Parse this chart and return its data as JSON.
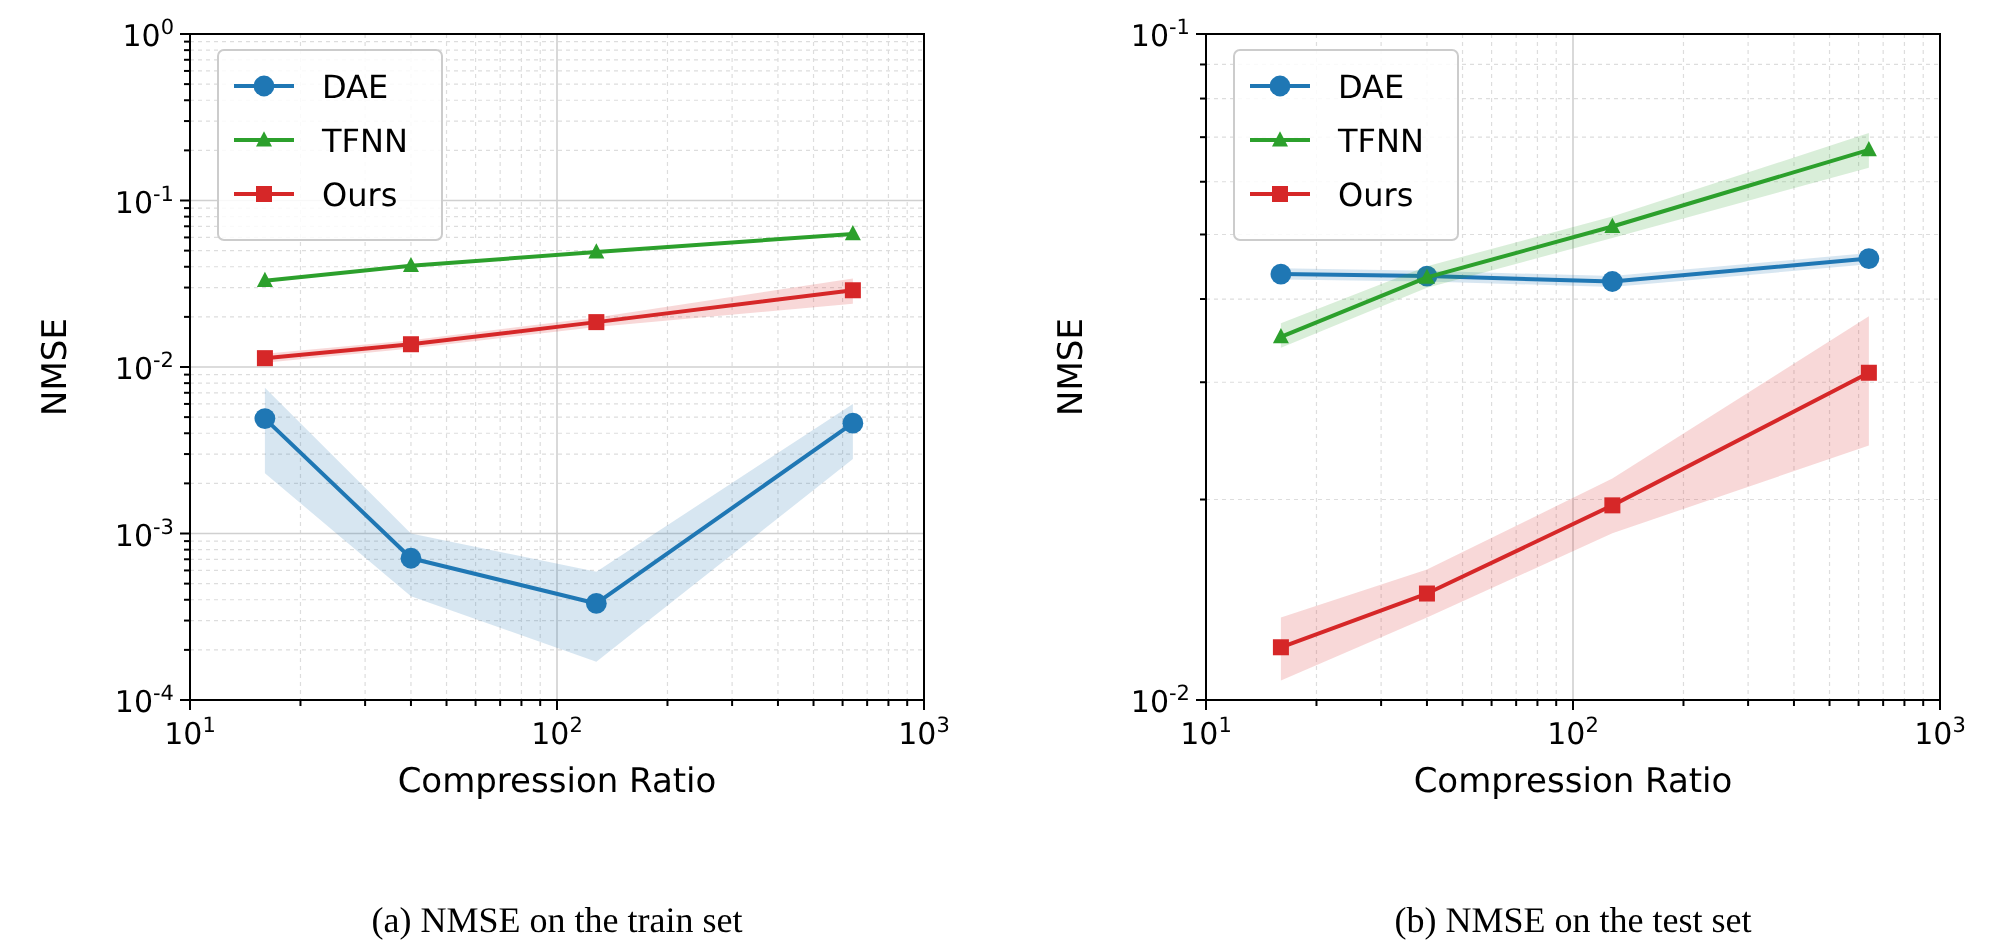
{
  "chart_data": [
    {
      "type": "line",
      "xlabel": "Compression Ratio",
      "ylabel": "NMSE",
      "log": "xy",
      "grid": true,
      "legend": "top left",
      "annotations": [
        "(a) NMSE on the train set"
      ],
      "xlim": [
        10,
        1000
      ],
      "xticks": [
        {
          "value": 10,
          "label": "10$^{1}$"
        },
        {
          "value": 100,
          "label": "10$^{2}$"
        },
        {
          "value": 1000,
          "label": "10$^{3}$"
        }
      ],
      "ylim": [
        0.0001,
        1
      ],
      "yticks": [
        {
          "value": 0.0001,
          "label": "10$^{-4}$"
        },
        {
          "value": 0.001,
          "label": "10$^{-3}$"
        },
        {
          "value": 0.01,
          "label": "10$^{-2}$"
        },
        {
          "value": 0.1,
          "label": "10$^{-1}$"
        },
        {
          "value": 1,
          "label": "10$^{0}$"
        }
      ],
      "x": [
        16,
        40,
        128,
        640
      ],
      "series": [
        {
          "name": "DAE",
          "color": "#1f77b4",
          "marker": "circle",
          "values": [
            0.0049,
            0.00071,
            0.00038,
            0.0046
          ],
          "lower": [
            0.0023,
            0.00042,
            0.00017,
            0.0028
          ],
          "upper": [
            0.0075,
            0.001,
            0.00059,
            0.006
          ]
        },
        {
          "name": "TFNN",
          "color": "#2ca02c",
          "marker": "triangle",
          "values": [
            0.033,
            0.0406,
            0.049,
            0.063
          ]
        },
        {
          "name": "Ours",
          "color": "#d62728",
          "marker": "square",
          "values": [
            0.0113,
            0.0137,
            0.0186,
            0.0289
          ],
          "lower": [
            0.0106,
            0.0129,
            0.0174,
            0.024
          ],
          "upper": [
            0.012,
            0.0145,
            0.0198,
            0.034
          ]
        }
      ]
    },
    {
      "type": "line",
      "xlabel": "Compression Ratio",
      "ylabel": "NMSE",
      "log": "xy",
      "grid": true,
      "legend": "top left",
      "annotations": [
        "(b) NMSE on the test set"
      ],
      "xlim": [
        10,
        1000
      ],
      "xticks": [
        {
          "value": 10,
          "label": "10$^{1}$"
        },
        {
          "value": 100,
          "label": "10$^{2}$"
        },
        {
          "value": 1000,
          "label": "10$^{3}$"
        }
      ],
      "ylim": [
        0.01,
        0.1
      ],
      "yticks": [
        {
          "value": 0.01,
          "label": "10$^{-2}$"
        },
        {
          "value": 0.1,
          "label": "10$^{-1}$"
        }
      ],
      "x": [
        16,
        40,
        128,
        640
      ],
      "series": [
        {
          "name": "DAE",
          "color": "#1f77b4",
          "marker": "circle",
          "values": [
            0.0436,
            0.0433,
            0.0425,
            0.046
          ],
          "lower": [
            0.0428,
            0.0425,
            0.0417,
            0.0451
          ],
          "upper": [
            0.0445,
            0.0441,
            0.0433,
            0.0469
          ]
        },
        {
          "name": "TFNN",
          "color": "#2ca02c",
          "marker": "triangle",
          "values": [
            0.0351,
            0.0431,
            0.0514,
            0.067
          ],
          "lower": [
            0.0338,
            0.0416,
            0.0494,
            0.063
          ],
          "upper": [
            0.0368,
            0.0448,
            0.0532,
            0.071
          ]
        },
        {
          "name": "Ours",
          "color": "#d62728",
          "marker": "square",
          "values": [
            0.012,
            0.01445,
            0.0196,
            0.031
          ],
          "lower": [
            0.0107,
            0.0133,
            0.0178,
            0.0241
          ],
          "upper": [
            0.0133,
            0.0157,
            0.0215,
            0.0377
          ]
        }
      ]
    }
  ]
}
